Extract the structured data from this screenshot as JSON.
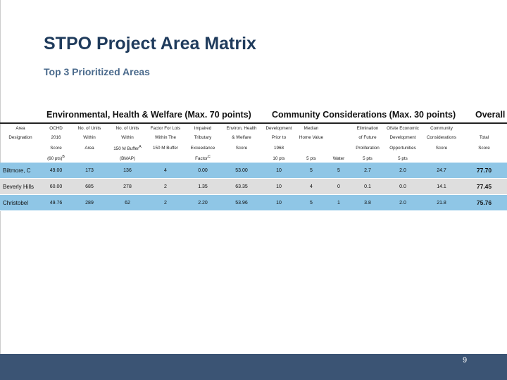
{
  "title": "STPO Project Area Matrix",
  "subtitle": "Top 3 Prioritized Areas",
  "groups": {
    "env": "Environmental, Health & Welfare (Max. 70 points)",
    "com": "Community  Considerations (Max. 30 points)",
    "ovr": "Overall"
  },
  "header_rows": [
    [
      "Area",
      "OCHD",
      "No. of Units",
      "No. of Units",
      "Factor For Lots",
      "Impaired",
      "Environ, Health",
      "Development",
      "Median",
      "",
      "Elimination",
      "Ofsite Economic",
      "Community",
      ""
    ],
    [
      "Designation",
      "2016",
      "Within",
      "Within",
      "Within The",
      "Tributary",
      "& Welfare",
      "Prior to",
      "Home Value",
      "",
      "of Future",
      "Development",
      "Considerations",
      "Total"
    ],
    [
      "",
      "Score",
      "Area",
      "150 M Buffer",
      "150 M Buffer",
      "Exceedance",
      "Score",
      "1968",
      "",
      "",
      "Proliferation",
      "Opportunities",
      "Score",
      "Score"
    ],
    [
      "",
      "(60 pts)",
      "",
      "(BMAP)",
      "",
      "Factor",
      "",
      "10 pts",
      "5 pts",
      "Water",
      "5 pts",
      "5 pts",
      "",
      ""
    ]
  ],
  "footnote_marks": {
    "score_pts": "B",
    "buffer": "A",
    "exceedance": "C"
  },
  "rows": [
    [
      "Biltmore, C",
      "49.00",
      "173",
      "136",
      "4",
      "0.00",
      "53.00",
      "10",
      "5",
      "5",
      "2.7",
      "2.0",
      "24.7",
      "77.70"
    ],
    [
      "Beverly Hills",
      "60.00",
      "685",
      "278",
      "2",
      "1.35",
      "63.35",
      "10",
      "4",
      "0",
      "0.1",
      "0.0",
      "14.1",
      "77.45"
    ],
    [
      "Christobel",
      "49.76",
      "289",
      "62",
      "2",
      "2.20",
      "53.96",
      "10",
      "5",
      "1",
      "3.8",
      "2.0",
      "21.8",
      "75.76"
    ]
  ],
  "page_number": "9",
  "colors": {
    "title": "#1f3b5c",
    "row_highlight": "#8fc6e6",
    "row_plain": "#dedede",
    "footer": "#3b5474"
  }
}
